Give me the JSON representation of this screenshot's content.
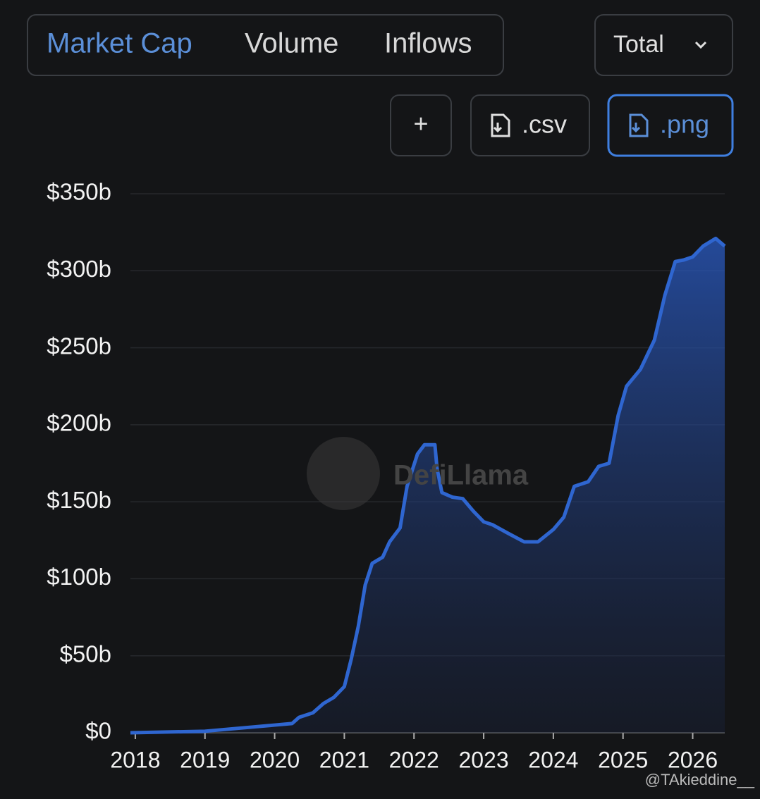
{
  "tabs": [
    "Market Cap",
    "Volume",
    "Inflows"
  ],
  "dropdown": "Total",
  "buttons": {
    "add": "+",
    "csv": ".csv",
    "png": ".png"
  },
  "watermark": "DefiLlama",
  "credit": "@TAkieddine__",
  "chart_data": {
    "type": "area",
    "color": "#2f66d0",
    "grid": true,
    "x": [
      2017.93,
      2019.0,
      2019.5,
      2020.0,
      2020.25,
      2020.35,
      2020.55,
      2020.7,
      2020.85,
      2021.0,
      2021.1,
      2021.2,
      2021.3,
      2021.4,
      2021.55,
      2021.65,
      2021.8,
      2021.9,
      2022.05,
      2022.15,
      2022.3,
      2022.33,
      2022.4,
      2022.55,
      2022.7,
      2022.85,
      2023.0,
      2023.13,
      2023.33,
      2023.58,
      2023.78,
      2024.0,
      2024.15,
      2024.3,
      2024.5,
      2024.65,
      2024.8,
      2024.93,
      2025.05,
      2025.25,
      2025.45,
      2025.6,
      2025.75,
      2025.87,
      2026.0,
      2026.15,
      2026.33,
      2026.46
    ],
    "values": [
      0,
      1,
      3,
      5,
      6,
      10,
      13,
      19,
      23,
      30,
      48,
      69,
      96,
      110,
      114,
      124,
      133,
      160,
      181,
      187,
      187,
      172,
      156,
      153,
      152,
      144,
      137,
      135,
      130,
      124,
      124,
      132,
      140,
      160,
      163,
      173,
      175,
      206,
      225,
      236,
      255,
      284,
      306,
      307,
      309,
      316,
      321,
      316
    ],
    "xlim": [
      2017.93,
      2026.46
    ],
    "xticks": [
      2018,
      2019,
      2020,
      2021,
      2022,
      2023,
      2024,
      2025,
      2026
    ],
    "ylim": [
      0,
      350
    ],
    "yticks": [
      {
        "value": 0,
        "label": "$0"
      },
      {
        "value": 50,
        "label": "$50b"
      },
      {
        "value": 100,
        "label": "$100b"
      },
      {
        "value": 150,
        "label": "$150b"
      },
      {
        "value": 200,
        "label": "$200b"
      },
      {
        "value": 250,
        "label": "$250b"
      },
      {
        "value": 300,
        "label": "$300b"
      },
      {
        "value": 350,
        "label": "$350b"
      }
    ]
  }
}
